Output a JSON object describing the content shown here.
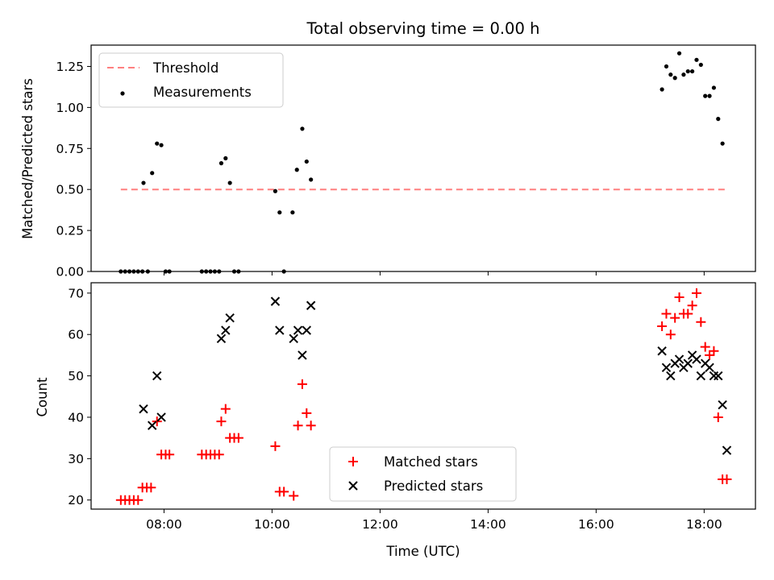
{
  "chart_data": [
    {
      "type": "scatter",
      "title": "Total observing time = 0.00 h",
      "xlabel": "",
      "ylabel": "Matched/Predicted stars",
      "xlim": [
        6.65,
        18.95
      ],
      "ylim": [
        0,
        1.38
      ],
      "xticks": [
        8,
        10,
        12,
        14,
        16,
        18
      ],
      "yticks": [
        {
          "v": 0,
          "label": "0.00"
        },
        {
          "v": 0.25,
          "label": "0.25"
        },
        {
          "v": 0.5,
          "label": "0.50"
        },
        {
          "v": 0.75,
          "label": "0.75"
        },
        {
          "v": 1.0,
          "label": "1.00"
        },
        {
          "v": 1.25,
          "label": "1.25"
        }
      ],
      "threshold": {
        "name": "Threshold",
        "value": 0.5,
        "x_range": [
          7.2,
          18.4
        ],
        "color": "#ff7f7f"
      },
      "legend": {
        "placement": "upper-left",
        "entries": [
          "Threshold",
          "Measurements"
        ]
      },
      "series": [
        {
          "name": "Measurements",
          "color": "#000000",
          "x": [
            7.2,
            7.28,
            7.36,
            7.44,
            7.52,
            7.6,
            7.62,
            7.7,
            7.78,
            7.87,
            7.95,
            8.03,
            8.1,
            8.7,
            8.78,
            8.86,
            8.94,
            9.02,
            9.06,
            9.14,
            9.22,
            9.3,
            9.38,
            10.06,
            10.14,
            10.22,
            10.38,
            10.46,
            10.56,
            10.64,
            10.72,
            17.22,
            17.3,
            17.38,
            17.46,
            17.54,
            17.62,
            17.7,
            17.78,
            17.86,
            17.94,
            18.02,
            18.1,
            18.18,
            18.26,
            18.34
          ],
          "y": [
            0,
            0,
            0,
            0,
            0,
            0,
            0.54,
            0,
            0.6,
            0.78,
            0.77,
            0,
            0,
            0,
            0,
            0,
            0,
            0,
            0.66,
            0.69,
            0.54,
            0,
            0,
            0.49,
            0.36,
            0,
            0.36,
            0.62,
            0.87,
            0.67,
            0.56,
            1.11,
            1.25,
            1.2,
            1.18,
            1.33,
            1.2,
            1.22,
            1.22,
            1.29,
            1.26,
            1.07,
            1.07,
            1.12,
            0.93,
            0.78
          ]
        }
      ]
    },
    {
      "type": "scatter",
      "title": "",
      "xlabel": "Time (UTC)",
      "ylabel": "Count",
      "xlim": [
        6.65,
        18.95
      ],
      "ylim": [
        17.8,
        72.5
      ],
      "xticks": [
        {
          "v": 8,
          "label": "08:00"
        },
        {
          "v": 10,
          "label": "10:00"
        },
        {
          "v": 12,
          "label": "12:00"
        },
        {
          "v": 14,
          "label": "14:00"
        },
        {
          "v": 16,
          "label": "16:00"
        },
        {
          "v": 18,
          "label": "18:00"
        }
      ],
      "yticks": [
        {
          "v": 20,
          "label": "20"
        },
        {
          "v": 30,
          "label": "30"
        },
        {
          "v": 40,
          "label": "40"
        },
        {
          "v": 50,
          "label": "50"
        },
        {
          "v": 60,
          "label": "60"
        },
        {
          "v": 70,
          "label": "70"
        }
      ],
      "legend": {
        "placement": "lower-center",
        "entries": [
          "Matched stars",
          "Predicted stars"
        ]
      },
      "series": [
        {
          "name": "Matched stars",
          "marker": "plus",
          "color": "#ff0000",
          "x": [
            7.2,
            7.28,
            7.36,
            7.44,
            7.52,
            7.6,
            7.68,
            7.76,
            7.87,
            7.95,
            8.03,
            8.1,
            8.7,
            8.78,
            8.86,
            8.94,
            9.02,
            9.06,
            9.14,
            9.22,
            9.3,
            9.38,
            10.06,
            10.14,
            10.22,
            10.4,
            10.48,
            10.56,
            10.64,
            10.72,
            17.22,
            17.3,
            17.38,
            17.46,
            17.54,
            17.62,
            17.7,
            17.78,
            17.86,
            17.94,
            18.02,
            18.1,
            18.18,
            18.26,
            18.34,
            18.42
          ],
          "y": [
            20,
            20,
            20,
            20,
            20,
            23,
            23,
            23,
            39,
            31,
            31,
            31,
            31,
            31,
            31,
            31,
            31,
            39,
            42,
            35,
            35,
            35,
            33,
            22,
            22,
            21,
            38,
            48,
            41,
            38,
            62,
            65,
            60,
            64,
            69,
            65,
            65,
            67,
            70,
            63,
            57,
            55,
            56,
            40,
            25,
            25
          ]
        },
        {
          "name": "Predicted stars",
          "marker": "x",
          "color": "#000000",
          "x": [
            7.62,
            7.78,
            7.87,
            7.95,
            9.06,
            9.14,
            9.22,
            10.06,
            10.14,
            10.4,
            10.48,
            10.56,
            10.64,
            10.72,
            17.22,
            17.3,
            17.38,
            17.46,
            17.54,
            17.62,
            17.7,
            17.78,
            17.86,
            17.94,
            18.02,
            18.1,
            18.18,
            18.26,
            18.34,
            18.42
          ],
          "y": [
            42,
            38,
            50,
            40,
            59,
            61,
            64,
            68,
            61,
            59,
            61,
            55,
            61,
            67,
            56,
            52,
            50,
            53,
            54,
            52,
            53,
            55,
            54,
            50,
            53,
            52,
            50,
            50,
            43,
            32
          ]
        }
      ]
    }
  ]
}
